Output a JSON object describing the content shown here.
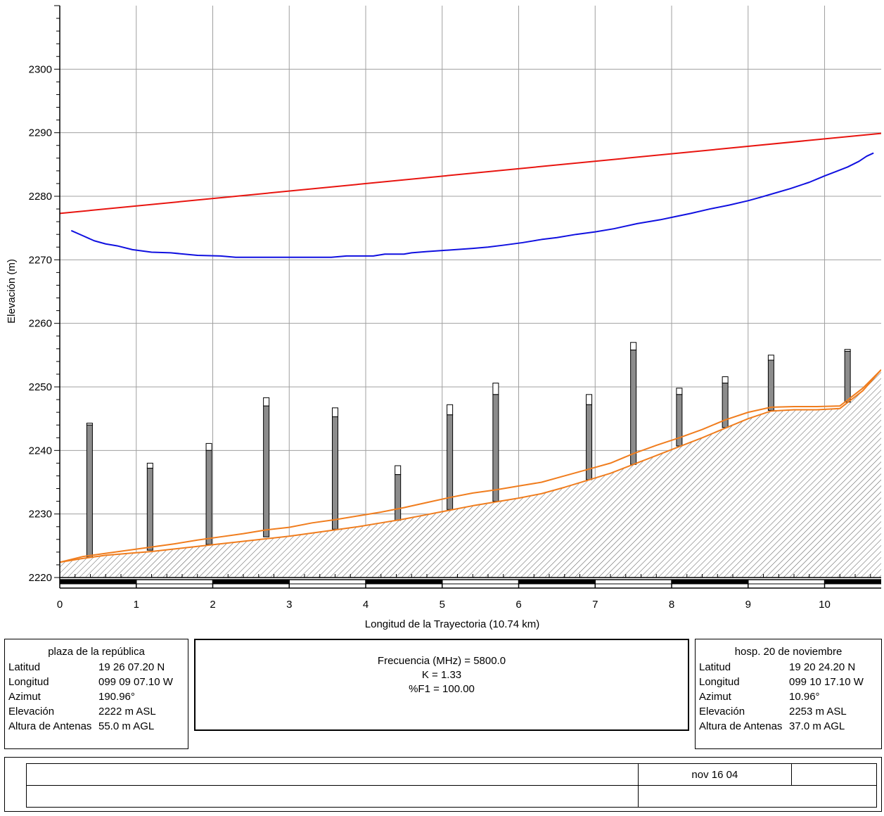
{
  "chart_data": {
    "type": "line",
    "xlabel": "Longitud de la Trayectoria (10.74 km)",
    "ylabel": "Elevación (m)",
    "xlim": [
      0,
      10.74
    ],
    "ylim": [
      2220,
      2310
    ],
    "x_ticks": [
      0,
      1,
      2,
      3,
      4,
      5,
      6,
      7,
      8,
      9,
      10
    ],
    "y_ticks": [
      2220,
      2230,
      2240,
      2250,
      2260,
      2270,
      2280,
      2290,
      2300
    ],
    "grid": true,
    "colors": {
      "line_of_sight": "#e8140f",
      "fresnel": "#1010e0",
      "terrain": "#f07d1e",
      "obstruction": "#8c8c8c"
    },
    "series": [
      {
        "role": "line-of-sight",
        "color": "#e8140f",
        "x": [
          0,
          10.74
        ],
        "y": [
          2277.3,
          2289.9
        ]
      },
      {
        "role": "fresnel-zone",
        "color": "#1010e0",
        "x": [
          0.15,
          0.3,
          0.45,
          0.6,
          0.75,
          0.95,
          1.2,
          1.45,
          1.8,
          2.1,
          2.3,
          2.6,
          2.9,
          3.2,
          3.55,
          3.75,
          4.1,
          4.25,
          4.5,
          4.6,
          4.8,
          5.05,
          5.4,
          5.6,
          5.8,
          6.05,
          6.3,
          6.5,
          6.75,
          7.0,
          7.25,
          7.55,
          7.85,
          8.05,
          8.25,
          8.5,
          8.75,
          9.0,
          9.15,
          9.35,
          9.55,
          9.65,
          9.8,
          10.0,
          10.15,
          10.3,
          10.45,
          10.55,
          10.64
        ],
        "y": [
          2274.6,
          2273.8,
          2273.0,
          2272.5,
          2272.2,
          2271.6,
          2271.2,
          2271.1,
          2270.7,
          2270.6,
          2270.4,
          2270.4,
          2270.4,
          2270.4,
          2270.4,
          2270.6,
          2270.6,
          2270.9,
          2270.9,
          2271.1,
          2271.3,
          2271.5,
          2271.8,
          2272.0,
          2272.3,
          2272.7,
          2273.2,
          2273.5,
          2274.0,
          2274.4,
          2274.9,
          2275.7,
          2276.3,
          2276.8,
          2277.3,
          2278.0,
          2278.6,
          2279.3,
          2279.8,
          2280.5,
          2281.2,
          2281.6,
          2282.2,
          2283.2,
          2283.9,
          2284.6,
          2285.5,
          2286.3,
          2286.8
        ]
      },
      {
        "role": "terrain-upper",
        "color": "#f07d1e",
        "x": [
          0,
          0.3,
          0.6,
          0.9,
          1.2,
          1.5,
          1.8,
          2.1,
          2.4,
          2.7,
          3.0,
          3.3,
          3.6,
          3.9,
          4.2,
          4.5,
          4.8,
          5.1,
          5.4,
          5.7,
          6.0,
          6.3,
          6.6,
          6.9,
          7.2,
          7.5,
          7.8,
          8.1,
          8.4,
          8.7,
          9.0,
          9.3,
          9.6,
          9.9,
          10.2,
          10.5,
          10.74
        ],
        "y": [
          2222.4,
          2223.3,
          2223.8,
          2224.3,
          2224.8,
          2225.3,
          2225.9,
          2226.4,
          2226.9,
          2227.5,
          2227.9,
          2228.6,
          2229.1,
          2229.7,
          2230.3,
          2231.0,
          2231.8,
          2232.6,
          2233.3,
          2233.8,
          2234.4,
          2235.0,
          2236.0,
          2237.0,
          2238.0,
          2239.5,
          2240.8,
          2242.0,
          2243.3,
          2244.8,
          2246.0,
          2246.8,
          2246.9,
          2246.9,
          2247.0,
          2249.8,
          2252.7
        ]
      },
      {
        "role": "terrain-lower",
        "color": "#f07d1e",
        "x": [
          0,
          0.3,
          0.6,
          0.9,
          1.2,
          1.5,
          1.8,
          2.1,
          2.4,
          2.7,
          3.0,
          3.3,
          3.6,
          3.9,
          4.2,
          4.5,
          4.8,
          5.1,
          5.4,
          5.7,
          6.0,
          6.3,
          6.6,
          6.9,
          7.2,
          7.5,
          7.8,
          8.1,
          8.4,
          8.7,
          9.0,
          9.3,
          9.6,
          9.9,
          10.2,
          10.5,
          10.74
        ],
        "y": [
          2222.4,
          2223.0,
          2223.5,
          2223.8,
          2224.1,
          2224.5,
          2224.9,
          2225.3,
          2225.7,
          2226.1,
          2226.5,
          2227.0,
          2227.5,
          2228.0,
          2228.6,
          2229.2,
          2229.9,
          2230.6,
          2231.3,
          2231.9,
          2232.5,
          2233.2,
          2234.2,
          2235.3,
          2236.4,
          2237.8,
          2239.2,
          2240.6,
          2242.0,
          2243.5,
          2245.0,
          2246.2,
          2246.4,
          2246.4,
          2246.6,
          2249.4,
          2252.7
        ]
      }
    ],
    "obstructions": [
      {
        "x": 0.39,
        "base": 2223.2,
        "top": 2244.0,
        "extra": 0.3
      },
      {
        "x": 1.18,
        "base": 2224.3,
        "top": 2237.2,
        "extra": 0.8
      },
      {
        "x": 1.95,
        "base": 2225.2,
        "top": 2240.0,
        "extra": 1.1
      },
      {
        "x": 2.7,
        "base": 2226.4,
        "top": 2247.0,
        "extra": 1.3
      },
      {
        "x": 3.6,
        "base": 2227.6,
        "top": 2245.3,
        "extra": 1.4
      },
      {
        "x": 4.42,
        "base": 2229.0,
        "top": 2236.2,
        "extra": 1.4
      },
      {
        "x": 5.1,
        "base": 2230.7,
        "top": 2245.6,
        "extra": 1.6
      },
      {
        "x": 5.7,
        "base": 2232.0,
        "top": 2248.8,
        "extra": 1.8
      },
      {
        "x": 6.92,
        "base": 2235.4,
        "top": 2247.2,
        "extra": 1.6
      },
      {
        "x": 7.5,
        "base": 2237.8,
        "top": 2255.8,
        "extra": 1.2
      },
      {
        "x": 8.1,
        "base": 2240.7,
        "top": 2248.8,
        "extra": 1.0
      },
      {
        "x": 8.7,
        "base": 2243.6,
        "top": 2250.6,
        "extra": 1.0
      },
      {
        "x": 9.3,
        "base": 2246.3,
        "top": 2254.2,
        "extra": 0.8
      },
      {
        "x": 10.3,
        "base": 2247.6,
        "top": 2255.6,
        "extra": 0.3
      }
    ]
  },
  "site_a": {
    "name": "plaza de la república",
    "rows": [
      {
        "label": "Latitud",
        "value": "19 26 07.20 N"
      },
      {
        "label": "Longitud",
        "value": "099 09 07.10 W"
      },
      {
        "label": "Azimut",
        "value": "190.96°"
      },
      {
        "label": "Elevación",
        "value": "2222 m ASL"
      },
      {
        "label": "Altura de Antenas",
        "value": "55.0 m AGL"
      }
    ]
  },
  "site_b": {
    "name": "hosp. 20 de noviembre",
    "rows": [
      {
        "label": "Latitud",
        "value": "19 20 24.20 N"
      },
      {
        "label": "Longitud",
        "value": "099 10 17.10 W"
      },
      {
        "label": "Azimut",
        "value": "10.96°"
      },
      {
        "label": "Elevación",
        "value": "2253 m ASL"
      },
      {
        "label": "Altura de Antenas",
        "value": "37.0 m AGL"
      }
    ]
  },
  "link": {
    "frequency": "Frecuencia (MHz) = 5800.0",
    "k_factor": "K = 1.33",
    "f1": "%F1 = 100.00"
  },
  "title_block": {
    "date": "nov 16 04"
  }
}
